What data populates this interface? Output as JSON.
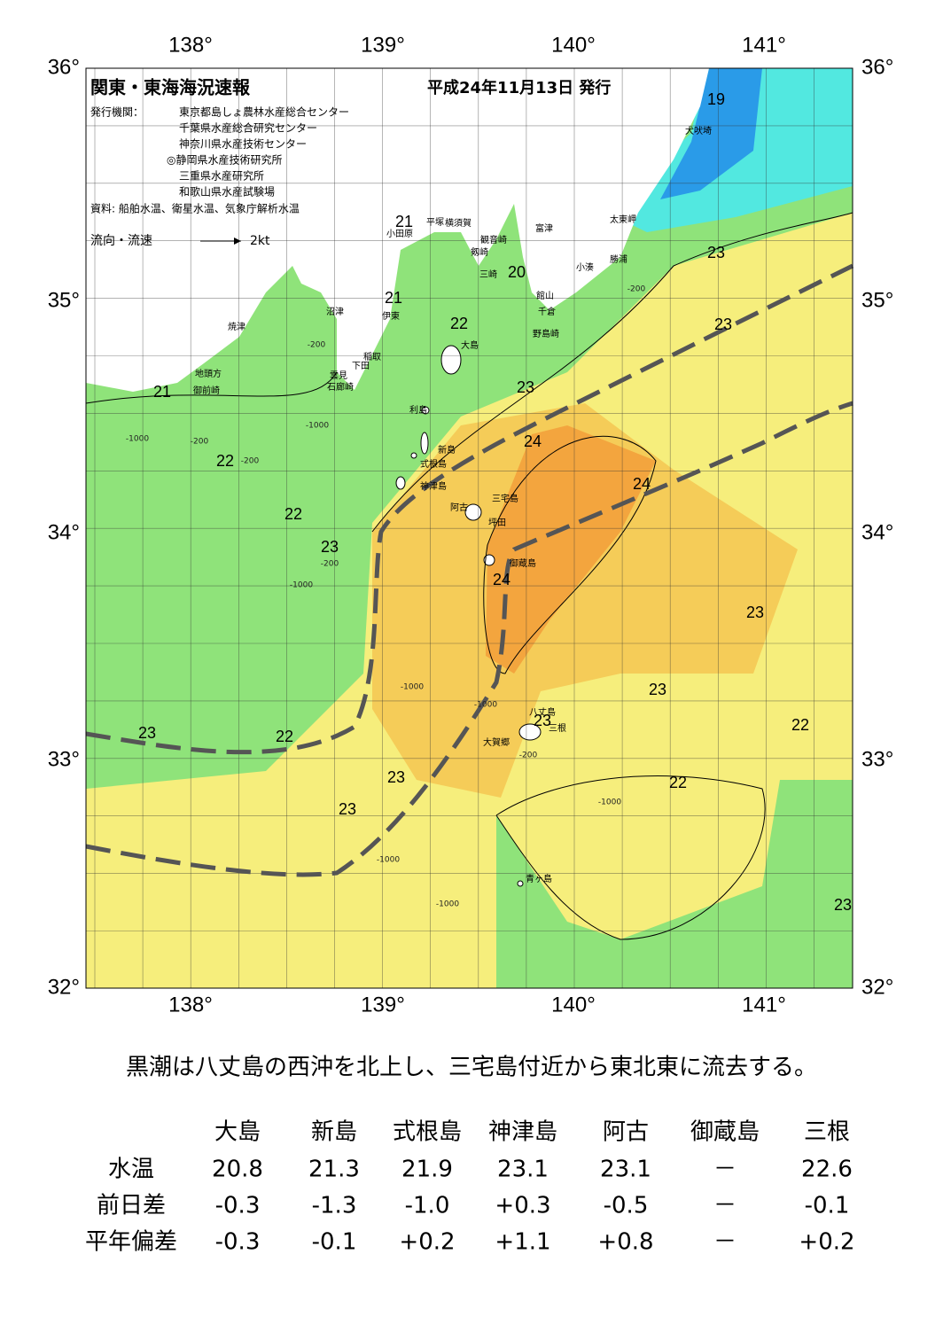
{
  "header": {
    "title": "関東・東海海況速報",
    "date": "平成24年11月13日 発行",
    "issuer_label": "発行機関：",
    "issuers": [
      "東京都島しょ農林水産総合センター",
      "千葉県水産総合研究センター",
      "神奈川県水産技術センター",
      "◎静岡県水産技術研究所",
      "三重県水産研究所",
      "和歌山県水産試験場"
    ],
    "source": "資料: 船舶水温、衛星水温、気象庁解析水温",
    "legend_label": "流向・流速",
    "legend_scale": "2kt"
  },
  "map": {
    "lon_labels": [
      "138°",
      "139°",
      "140°",
      "141°"
    ],
    "lat_labels": [
      "36°",
      "35°",
      "34°",
      "33°",
      "32°"
    ],
    "places": [
      "犬吠埼",
      "太東岬",
      "勝浦",
      "小湊",
      "富津",
      "館山",
      "千倉",
      "野島崎",
      "横須賀",
      "平塚",
      "観音崎",
      "剱崎",
      "三崎",
      "小田原",
      "沼津",
      "伊東",
      "焼津",
      "稲取",
      "下田",
      "雲見",
      "石廊崎",
      "地頭方",
      "御前崎",
      "大島",
      "利島",
      "新島",
      "式根島",
      "神津島",
      "三宅島",
      "阿古",
      "坪田",
      "御蔵島",
      "八丈島",
      "三根",
      "大賀郷",
      "青ヶ島"
    ],
    "contour_labels": [
      19,
      21,
      20,
      21,
      22,
      23,
      23,
      23,
      21,
      24,
      22,
      24,
      22,
      23,
      24,
      23,
      23,
      23,
      22,
      23,
      22,
      23,
      22,
      23,
      23
    ],
    "depth_labels": [
      "-200",
      "-1000",
      "-200",
      "-1000",
      "-200",
      "-1000",
      "-200",
      "-1000",
      "-1000",
      "-200",
      "-1000",
      "-1000",
      "-1000",
      "-200"
    ]
  },
  "summary": "黒潮は八丈島の西沖を北上し、三宅島付近から東北東に流去する。",
  "table": {
    "columns": [
      "大島",
      "新島",
      "式根島",
      "神津島",
      "阿古",
      "御蔵島",
      "三根"
    ],
    "rows": [
      {
        "label": "水温",
        "values": [
          "20.8",
          "21.3",
          "21.9",
          "23.1",
          "23.1",
          "－",
          "22.6"
        ]
      },
      {
        "label": "前日差",
        "values": [
          "-0.3",
          "-1.3",
          "-1.0",
          "+0.3",
          "-0.5",
          "－",
          "-0.1"
        ]
      },
      {
        "label": "平年偏差",
        "values": [
          "-0.3",
          "-0.1",
          "+0.2",
          "+1.1",
          "+0.8",
          "－",
          "+0.2"
        ]
      }
    ]
  }
}
